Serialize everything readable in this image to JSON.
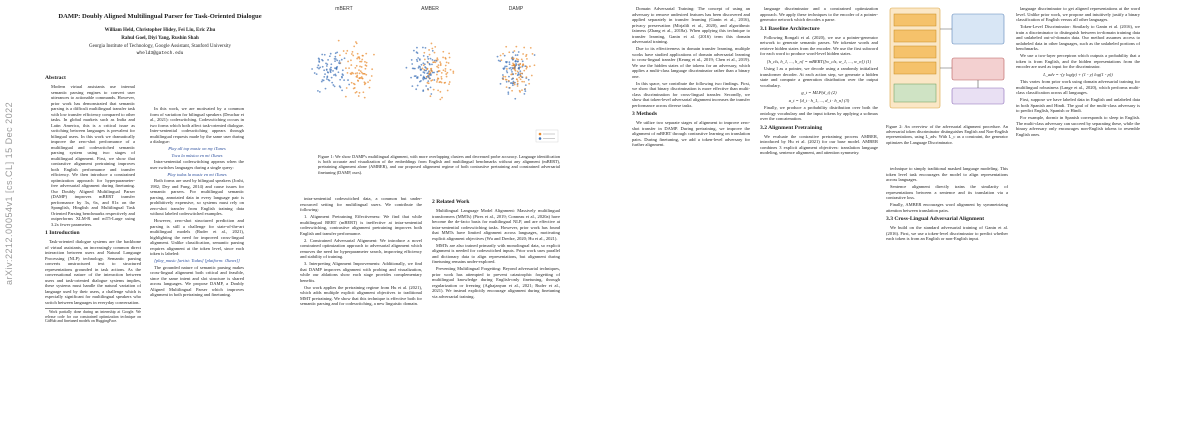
{
  "sidebar": "arXiv:2212.00054v1  [cs.CL]  15 Dec 2022",
  "header": {
    "title": "DAMP: Doubly Aligned Multilingual Parser for Task-Oriented Dialogue",
    "authors_line1": "William Held, Christopher Hidey, Fei Liu, Eric Zhu",
    "authors_line2": "Rahul Goel, Diyi Yang, Rushin Shah",
    "affiliations": "Georgia Institute of Technology, Google Assistant, Stanford University",
    "email": "wheld3@gatech.edu"
  },
  "figure1": {
    "panels": [
      "mBERT",
      "AMBER",
      "DAMP"
    ],
    "caption": "Figure 1: We show DAMP's multilingual alignment, with more overlapping clusters and decreased probe accuracy. Language identification is both accurate and visualization of the embeddings from English and multilingual benchmarks without any alignment (mBERT), pretraining alignment alone (AMBER), and our proposed alignment regime of both contrastive pretraining and constrained adversarial finetuning (DAMP, ours)."
  },
  "figure2": {
    "caption": "Figure 2: An overview of the adversarial alignment procedure. An adversarial token discriminator distinguishes English and Non-English representations, using L_adv. With L_c as a constraint, the generator optimizes the Language Discriminator."
  },
  "col_a": [
    {
      "heading": "Abstract"
    },
    {
      "abstract": "Modern virtual assistants use internal semantic parsing engines to convert user utterances to actionable commands. However, prior work has demonstrated that semantic parsing is a difficult multilingual transfer task with low transfer efficiency compared to other tasks. In global markets such as India and Latin America, this is a critical issue as switching between languages is prevalent for bilingual users. In this work we dramatically improve the zero-shot performance of a multilingual and codeswitched semantic parsing system using two stages of multilingual alignment. First, we show that contrastive alignment pretraining improves both English performance and transfer efficiency. We then introduce a constrained optimization approach for hyperparameter-free adversarial alignment during finetuning. Our Doubly Aligned Multilingual Parser (DAMP) improves mBERT transfer performance by 3x, 6x, and 81x on the Spanglish, Hinglish and Multilingual Task Oriented Parsing benchmarks respectively and outperforms XLM-R and mT5-Large using 3.2x fewer parameters."
    },
    {
      "heading": "1   Introduction"
    },
    {
      "text": "Task-oriented dialogue systems are the backbone of virtual assistants, an increasingly common direct interaction between users and Natural Language Processing (NLP) technology. Semantic parsing converts unstructured text to structured representations grounded in task actions. As the conversational nature of the interaction between users and task-oriented dialogue systems implies, these systems must handle the natural variation of language used by their users, a challenge which is especially significant for multilingual speakers who switch between languages in everyday conversation."
    },
    {
      "footnote": "Work partially done during an internship at Google. We release code for our constrained optimization technique on GitHub and finetuned models on HuggingFace."
    }
  ],
  "col_b": [
    {
      "text": "In this work, we are motivated by a common form of variation for bilingual speakers (Deuchar et al., 2021): codeswitching. Codeswitching occurs in two forms which both affect task-oriented dialogue. Inter-sentential codeswitching appears through multilingual requests made by the same user during a dialogue:"
    },
    {
      "example": "Play all top music on my iTunes"
    },
    {
      "example": "Toca la música en mi iTunes"
    },
    {
      "text": "Intra-sentential codeswitching appears when the user switches languages during a single query:"
    },
    {
      "example": "Play todas la music en mi iTunes"
    },
    {
      "text": "Both forms are used by bilingual speakers (Joshi, 1982; Dey and Fung, 2014) and cause issues for semantic parsers. For multilingual semantic parsing, annotated data in every language pair is prohibitively expensive, so systems must rely on zero-shot transfer from English training data without labeled codeswitched examples."
    },
    {
      "text": "However, zero-shot structured prediction and parsing is still a challenge for state-of-the-art multilingual models (Ruder et al., 2021), highlighting the need for improved cross-lingual alignment. Unlike classification, semantic parsing requires alignment at the token level, since each token is labeled:"
    },
    {
      "example": "[play_music [artist: Todas] [platform: iTunes]]"
    },
    {
      "text": "The grounded nature of semantic parsing makes cross-lingual alignment both critical and feasible, since the same intent and slot structure is shared across languages. We propose DAMP, a Doubly Aligned Multilingual Parser which improves alignment in both pretraining and finetuning."
    }
  ],
  "col_c": [
    {
      "text": "intra-sentential codeswitched data, a common but under-resourced setting for multilingual users. We contribute the following:"
    },
    {
      "text": "1. Alignment Pretraining Effectiveness: We find that while multilingual BERT (mBERT) is ineffective at intra-sentential codeswitching, contrastive alignment pretraining improves both English and transfer performance."
    },
    {
      "text": "2. Constrained Adversarial Alignment: We introduce a novel constrained optimization approach to adversarial alignment which removes the need for hyperparameter search, improving efficiency and stability of training."
    },
    {
      "text": "3. Interpreting Alignment Improvements: Additionally, we find that DAMP improves alignment with probing and visualization, while our ablations show each stage provides complementary benefits."
    },
    {
      "text": "Our work applies the pretraining regime from Hu et al. (2021), which adds multiple explicit alignment objectives to traditional MMT pretraining. We show that this technique is effective both for semantic parsing and for codeswitching, a new linguistic domain."
    }
  ],
  "col_d": [
    {
      "heading": "2   Related Work"
    },
    {
      "text": "Multilingual Language Model Alignment: Massively multilingual transformers (MMTs) (Pires et al., 2019; Conneau et al., 2020a) have become the de-facto basis for multilingual NLP, and are effective at intra-sentential codeswitching tasks. However, prior work has found that MMTs have limited alignment across languages, motivating explicit alignment objectives (Wu and Dredze, 2020; Hu et al., 2021)."
    },
    {
      "text": "MMTs are also trained primarily with monolingual data, so explicit alignment is needed for codeswitched inputs. Prior work uses parallel and dictionary data to align representations, but alignment during finetuning remains under-explored."
    },
    {
      "text": "Preventing Multilingual Forgetting: Beyond adversarial techniques, prior work has attempted to prevent catastrophic forgetting of multilingual knowledge during English-only finetuning, through regularization or freezing (Aghajanyan et al., 2021; Ruder et al., 2021). We instead explicitly encourage alignment during finetuning via adversarial training."
    }
  ],
  "col_e": [
    {
      "text": "Domain Adversarial Training: The concept of using an adversary to remove undesired features has been discovered and applied separately in transfer learning (Ganin et al., 2016), privacy preservation (Mirjalili et al., 2020), and algorithmic fairness (Zhang et al., 2018a). When applying this technique to transfer learning, Ganin et al. (2016) term this domain adversarial training."
    },
    {
      "text": "Due to its effectiveness in domain transfer learning, multiple works have studied applications of domain adversarial learning to cross-lingual transfer (Keung et al., 2019; Chen et al., 2019). We use the hidden states of the tokens for an adversary, which applies a multi-class language discriminator rather than a binary one."
    },
    {
      "text": "In this space, we contribute the following two findings. First, we show that binary discrimination is more effective than multi-class discrimination for cross-lingual transfer. Secondly, we show that token-level adversarial alignment increases the transfer performance across diverse tasks."
    },
    {
      "heading": "3   Methods"
    },
    {
      "text": "We utilize two separate stages of alignment to improve zero-shot transfer in DAMP. During pretraining, we improve the alignment of mBERT through contrastive learning on translation pairs. During finetuning, we add a token-level adversary for further alignment."
    }
  ],
  "col_f": [
    {
      "text": "language discriminator and a constrained optimization approach. We apply these techniques to the encoder of a pointer-generator network which decodes a parse."
    },
    {
      "heading": "3.1   Baseline Architecture"
    },
    {
      "text": "Following Rongali et al. (2020), we use a pointer-generator network to generate semantic parses. We tokenize words and retrieve hidden states from the encoder. We use the first subword for each word to produce word-level hidden states."
    },
    {
      "equation": "[h_cls, h_1, ..., h_n] = mBERT([w_cls, w_1, ..., w_n])     (1)"
    },
    {
      "text": "Using l as a pointer, we decode using a randomly initialized transformer decoder. At each action step, we generate a hidden state and compute a generation distribution over the output vocabulary."
    },
    {
      "equation": "g_t = MLP(d_t)     (2)"
    },
    {
      "equation": "a_t = [d_t · h_1, ..., d_t · h_n]     (3)"
    },
    {
      "text": "Finally, we produce a probability distribution over both the ontology vocabulary and the input tokens by applying a softmax over the concatenation."
    },
    {
      "heading": "3.2   Alignment Pretraining"
    },
    {
      "text": "We evaluate the contrastive pretraining process AMBER, introduced by Hu et al. (2021) for our base model. AMBER combines 3 explicit alignment objectives: translation language modeling, sentence alignment, and attention symmetry."
    }
  ],
  "col_g": [
    {
      "text": "technique to simply traditional masked language modeling. This token level task encourages the model to align representations across languages."
    },
    {
      "text": "Sentence alignment directly trains the similarity of representations between a sentence and its translation via a contrastive loss."
    },
    {
      "text": "Finally, AMBER encourages word alignment by symmetrizing attention between translation pairs."
    },
    {
      "heading": "3.3   Cross-Lingual Adversarial Alignment"
    },
    {
      "text": "We build on the standard adversarial training of Ganin et al. (2016). First, we use a token-level discriminator to predict whether each token is from an English or non-English input."
    }
  ],
  "col_h": [
    {
      "text": "language discriminator to get aligned representations at the word level. Unlike prior work, we propose and intuitively justify a binary classification of English versus all other languages."
    },
    {
      "text": "Token-Level Discriminator: Similarly to Ganin et al. (2016), we train a discriminator to distinguish between in-domain training data and unlabeled out-of-domain data. Our method assumes access to unlabeled data in other languages, such as the unlabeled portions of benchmarks."
    },
    {
      "text": "We use a two-layer perceptron which outputs a probability that a token is from English, and the hidden representations from the encoder are used as input for the discriminator."
    },
    {
      "equation": "L_adv = -(y log(p) + (1 - y) log(1 - p))"
    },
    {
      "text": "This varies from prior work using domain adversarial training for multilingual robustness (Lange et al., 2020), which performs multi-class classification across all languages."
    },
    {
      "text": "First, suppose we have labeled data in English and unlabeled data in both Spanish and Hindi. The goal of the multi-class adversary is to predict English, Spanish or Hindi."
    },
    {
      "text": "For example, dormir in Spanish corresponds to sleep in English. The multi-class adversary can succeed by separating these, while the binary adversary only encourages non-English tokens to resemble English ones."
    }
  ]
}
